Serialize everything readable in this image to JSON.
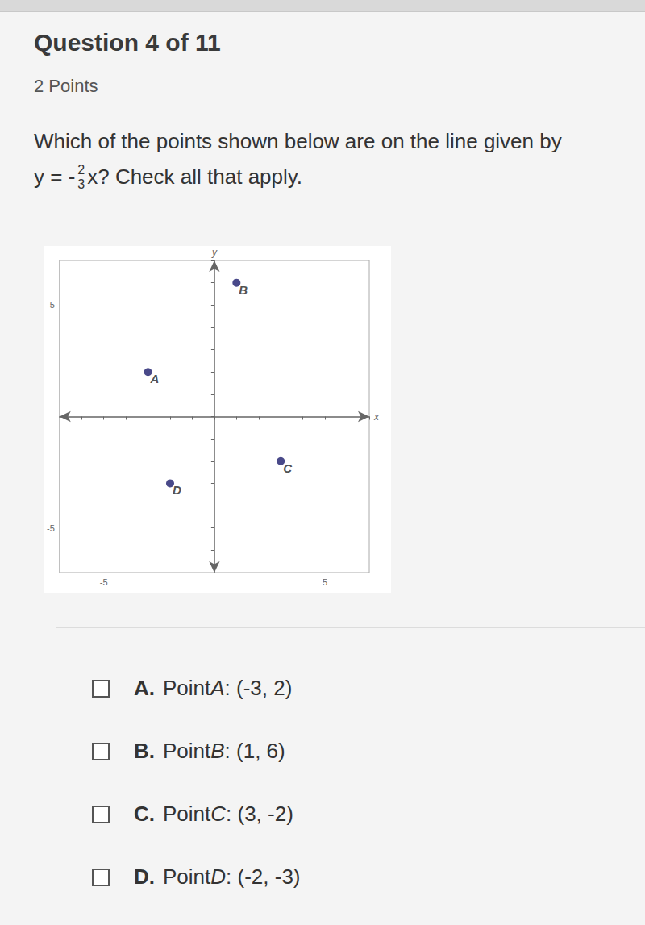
{
  "header": {
    "title": "Question 4 of 11",
    "points": "2 Points"
  },
  "question": {
    "line1": "Which of the points shown below are on the line given by",
    "equation_lhs": "y = -",
    "numerator": "2",
    "denominator": "3",
    "equation_rhs": "x?",
    "instruction": "Check all that apply."
  },
  "chart_data": {
    "type": "scatter",
    "x": [
      -3,
      1,
      3,
      -2
    ],
    "values": [
      2,
      6,
      -2,
      -3
    ],
    "point_labels": [
      "A",
      "B",
      "C",
      "D"
    ],
    "color": "#1c1c6b",
    "x_label": "x",
    "y_label": "y",
    "xlim": [
      -7,
      7
    ],
    "ylim": [
      -7,
      7
    ],
    "xticks": [
      -5,
      5
    ],
    "yticks": [
      -5,
      5
    ],
    "grid": false
  },
  "options": [
    {
      "letter": "A.",
      "prefix": "Point ",
      "name": "A",
      "suffix": ": (-3, 2)"
    },
    {
      "letter": "B.",
      "prefix": "Point ",
      "name": "B",
      "suffix": ": (1, 6)"
    },
    {
      "letter": "C.",
      "prefix": "Point ",
      "name": "C",
      "suffix": ": (3, -2)"
    },
    {
      "letter": "D.",
      "prefix": "Point ",
      "name": "D",
      "suffix": ": (-2, -3)"
    }
  ]
}
